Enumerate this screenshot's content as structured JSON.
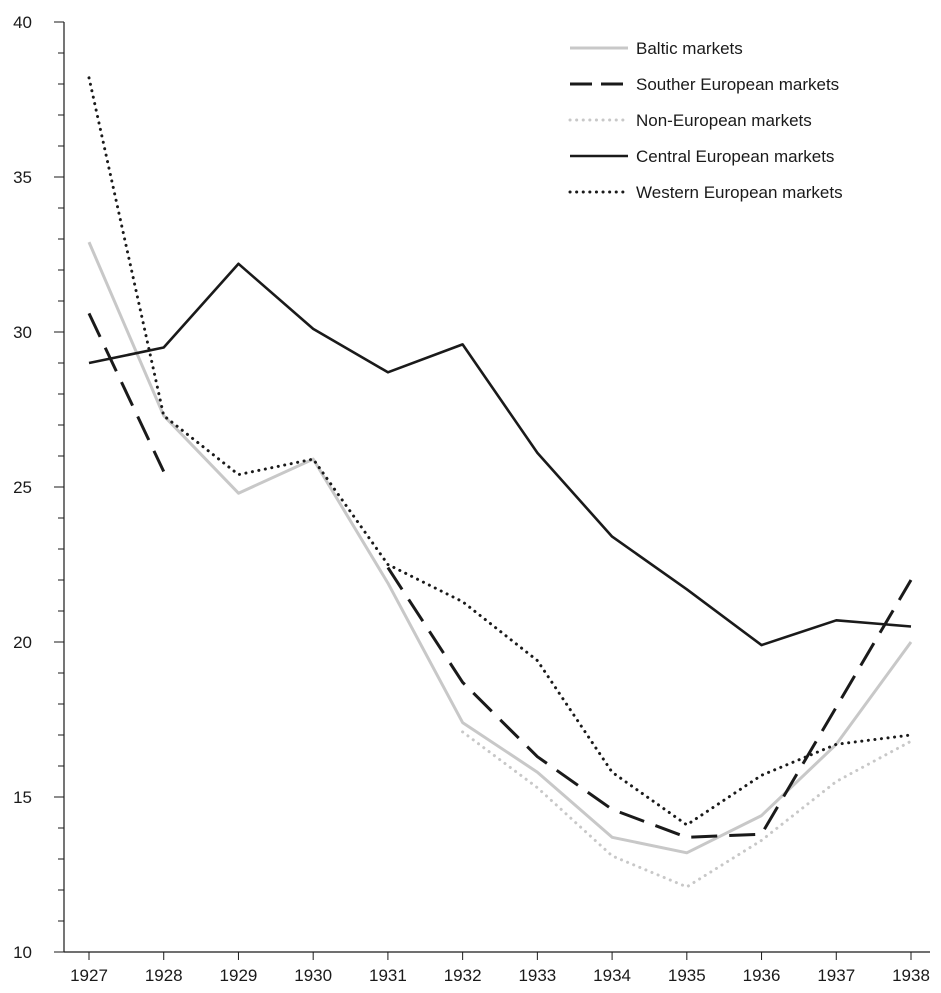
{
  "chart_data": {
    "type": "line",
    "title": "",
    "xlabel": "",
    "ylabel": "",
    "categories": [
      "1927",
      "1928",
      "1929",
      "1930",
      "1931",
      "1932",
      "1933",
      "1934",
      "1935",
      "1936",
      "1937",
      "1938"
    ],
    "ylim": [
      10,
      40
    ],
    "yticks": [
      "10",
      "15",
      "20",
      "25",
      "30",
      "35",
      "40"
    ],
    "grid": false,
    "legend_position": "top-right",
    "series": [
      {
        "name": "Baltic markets",
        "color": "#c8c8c8",
        "style": "solid",
        "values": [
          32.9,
          27.3,
          24.8,
          25.9,
          21.9,
          17.4,
          15.8,
          13.7,
          13.2,
          14.4,
          16.7,
          20.0
        ]
      },
      {
        "name": "Souther European markets",
        "color": "#1a1a1a",
        "style": "dashed",
        "values": [
          30.6,
          25.5,
          null,
          null,
          22.4,
          18.7,
          16.3,
          14.6,
          13.7,
          13.8,
          17.9,
          22.0
        ]
      },
      {
        "name": "Non-European markets",
        "color": "#c8c8c8",
        "style": "dotted",
        "values": [
          null,
          null,
          null,
          null,
          null,
          17.1,
          15.3,
          13.1,
          12.1,
          13.6,
          15.5,
          16.8
        ]
      },
      {
        "name": "Central European markets",
        "color": "#1a1a1a",
        "style": "solid",
        "values": [
          29.0,
          29.5,
          32.2,
          30.1,
          28.7,
          29.6,
          26.1,
          23.4,
          21.7,
          19.9,
          20.7,
          20.5
        ]
      },
      {
        "name": "Western European markets",
        "color": "#1a1a1a",
        "style": "dotted",
        "values": [
          38.2,
          27.3,
          25.4,
          25.9,
          22.5,
          21.3,
          19.4,
          15.8,
          14.1,
          15.7,
          16.7,
          17.0
        ]
      }
    ]
  }
}
